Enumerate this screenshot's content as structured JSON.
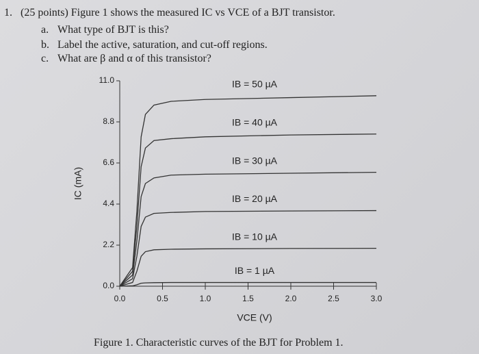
{
  "question": {
    "number": "1.",
    "stem": "(25 points) Figure 1 shows the measured IC vs VCE of a BJT transistor.",
    "parts": [
      {
        "label": "a.",
        "text": "What type of BJT is this?"
      },
      {
        "label": "b.",
        "text": "Label the active, saturation, and cut-off regions."
      },
      {
        "label": "c.",
        "text": "What are β and α of this transistor?"
      }
    ]
  },
  "chart_data": {
    "type": "line",
    "x_label": "VCE (V)",
    "y_label": "IC (mA)",
    "x": [
      0,
      0.15,
      0.2,
      0.25,
      0.3,
      0.4,
      0.6,
      1.0,
      2.0,
      3.0
    ],
    "series": [
      {
        "name": "IB = 50 µA",
        "color": "#333333",
        "values": [
          0,
          1.0,
          4.0,
          8.0,
          9.2,
          9.7,
          9.9,
          10.0,
          10.1,
          10.2
        ]
      },
      {
        "name": "IB = 40 µA",
        "color": "#333333",
        "values": [
          0,
          0.8,
          3.2,
          6.4,
          7.4,
          7.8,
          7.9,
          8.0,
          8.1,
          8.15
        ]
      },
      {
        "name": "IB = 30 µA",
        "color": "#333333",
        "values": [
          0,
          0.6,
          2.4,
          4.8,
          5.5,
          5.8,
          5.95,
          6.0,
          6.05,
          6.1
        ]
      },
      {
        "name": "IB = 20 µA",
        "color": "#333333",
        "values": [
          0,
          0.4,
          1.6,
          3.2,
          3.7,
          3.9,
          3.95,
          4.0,
          4.03,
          4.05
        ]
      },
      {
        "name": "IB = 10 µA",
        "color": "#333333",
        "values": [
          0,
          0.2,
          0.8,
          1.6,
          1.85,
          1.95,
          1.98,
          2.0,
          2.02,
          2.03
        ]
      },
      {
        "name": "IB = 1 µA",
        "color": "#333333",
        "values": [
          0,
          0.02,
          0.08,
          0.16,
          0.18,
          0.19,
          0.2,
          0.2,
          0.2,
          0.2
        ]
      }
    ],
    "xlim": [
      0,
      3.0
    ],
    "xticks": [
      {
        "value": 0,
        "label": "0.0"
      },
      0.5,
      {
        "value": 1,
        "label": "1.0"
      },
      1.5,
      {
        "value": 2,
        "label": "2.0"
      },
      2.5,
      {
        "value": 3,
        "label": "3.0"
      }
    ],
    "ylim": [
      0,
      11.0
    ],
    "yticks": [
      {
        "value": 0,
        "label": "0.0"
      },
      2.2,
      4.4,
      6.6,
      8.8,
      {
        "value": 11,
        "label": "11.0"
      }
    ]
  },
  "caption": "Figure 1. Characteristic curves of the BJT for Problem 1."
}
